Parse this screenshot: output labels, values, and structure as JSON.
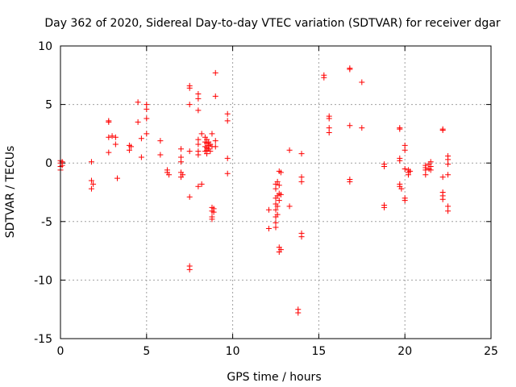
{
  "chart_data": {
    "type": "scatter",
    "title": "Day 362 of 2020, Sidereal Day-to-day VTEC variation (SDTVAR) for receiver dgar",
    "xlabel": "GPS time / hours",
    "ylabel": "SDTVAR / TECUs",
    "xlim": [
      0,
      25
    ],
    "ylim": [
      -15,
      10
    ],
    "xticks": [
      0,
      5,
      10,
      15,
      20,
      25
    ],
    "yticks": [
      -15,
      -10,
      -5,
      0,
      5,
      10
    ],
    "grid": true,
    "marker": "+",
    "color": "#ff0000",
    "series": [
      {
        "name": "SDTVAR",
        "points": [
          [
            0.0,
            0.2
          ],
          [
            0.0,
            0.0
          ],
          [
            0.0,
            -0.3
          ],
          [
            0.0,
            -0.6
          ],
          [
            0.1,
            0.1
          ],
          [
            0.1,
            -0.2
          ],
          [
            1.8,
            0.1
          ],
          [
            1.8,
            -1.5
          ],
          [
            1.8,
            -2.2
          ],
          [
            1.9,
            -1.8
          ],
          [
            2.8,
            3.6
          ],
          [
            2.8,
            3.5
          ],
          [
            2.8,
            2.2
          ],
          [
            2.8,
            0.9
          ],
          [
            3.0,
            2.3
          ],
          [
            3.2,
            2.2
          ],
          [
            3.2,
            1.6
          ],
          [
            3.3,
            -1.3
          ],
          [
            4.0,
            1.5
          ],
          [
            4.0,
            1.1
          ],
          [
            4.1,
            1.4
          ],
          [
            4.5,
            5.2
          ],
          [
            4.5,
            3.5
          ],
          [
            4.7,
            2.1
          ],
          [
            4.7,
            0.5
          ],
          [
            5.0,
            5.0
          ],
          [
            5.0,
            4.6
          ],
          [
            5.0,
            3.8
          ],
          [
            5.0,
            2.5
          ],
          [
            5.8,
            1.9
          ],
          [
            5.8,
            0.7
          ],
          [
            6.2,
            -0.6
          ],
          [
            6.2,
            -0.8
          ],
          [
            6.3,
            -1.0
          ],
          [
            7.0,
            1.2
          ],
          [
            7.0,
            0.5
          ],
          [
            7.0,
            0.1
          ],
          [
            7.0,
            -0.8
          ],
          [
            7.0,
            -1.2
          ],
          [
            7.1,
            -1.0
          ],
          [
            7.5,
            6.6
          ],
          [
            7.5,
            6.4
          ],
          [
            7.5,
            5.0
          ],
          [
            7.5,
            1.0
          ],
          [
            7.5,
            -2.9
          ],
          [
            7.5,
            -8.8
          ],
          [
            7.5,
            -9.1
          ],
          [
            8.0,
            5.9
          ],
          [
            8.0,
            5.5
          ],
          [
            8.0,
            4.5
          ],
          [
            8.0,
            2.0
          ],
          [
            8.0,
            1.6
          ],
          [
            8.0,
            1.0
          ],
          [
            8.0,
            0.7
          ],
          [
            8.0,
            -2.0
          ],
          [
            8.2,
            2.5
          ],
          [
            8.2,
            -1.8
          ],
          [
            8.4,
            2.2
          ],
          [
            8.4,
            1.8
          ],
          [
            8.4,
            1.4
          ],
          [
            8.4,
            1.0
          ],
          [
            8.5,
            2.0
          ],
          [
            8.5,
            1.7
          ],
          [
            8.5,
            1.3
          ],
          [
            8.5,
            1.1
          ],
          [
            8.5,
            0.8
          ],
          [
            8.6,
            1.8
          ],
          [
            8.6,
            1.5
          ],
          [
            8.6,
            1.2
          ],
          [
            8.7,
            1.6
          ],
          [
            8.7,
            1.0
          ],
          [
            8.8,
            2.5
          ],
          [
            8.8,
            1.4
          ],
          [
            8.8,
            -3.8
          ],
          [
            8.8,
            -4.1
          ],
          [
            8.8,
            -4.6
          ],
          [
            8.8,
            -4.8
          ],
          [
            8.9,
            -3.9
          ],
          [
            8.9,
            -4.2
          ],
          [
            9.0,
            7.7
          ],
          [
            9.0,
            5.7
          ],
          [
            9.0,
            1.9
          ],
          [
            9.0,
            1.4
          ],
          [
            9.7,
            4.2
          ],
          [
            9.7,
            3.6
          ],
          [
            9.7,
            0.4
          ],
          [
            9.7,
            -0.9
          ],
          [
            12.1,
            -4.0
          ],
          [
            12.1,
            -5.6
          ],
          [
            12.5,
            -1.8
          ],
          [
            12.5,
            -2.2
          ],
          [
            12.5,
            -3.0
          ],
          [
            12.5,
            -3.5
          ],
          [
            12.5,
            -4.0
          ],
          [
            12.5,
            -4.6
          ],
          [
            12.5,
            -5.1
          ],
          [
            12.5,
            -5.5
          ],
          [
            12.6,
            -1.6
          ],
          [
            12.6,
            -2.8
          ],
          [
            12.6,
            -3.7
          ],
          [
            12.6,
            -4.4
          ],
          [
            12.7,
            -0.7
          ],
          [
            12.7,
            -1.9
          ],
          [
            12.7,
            -2.6
          ],
          [
            12.7,
            -3.2
          ],
          [
            12.7,
            -7.2
          ],
          [
            12.7,
            -7.6
          ],
          [
            12.8,
            -0.8
          ],
          [
            12.8,
            -2.7
          ],
          [
            12.8,
            -7.4
          ],
          [
            13.3,
            1.1
          ],
          [
            13.3,
            -3.7
          ],
          [
            13.8,
            -12.5
          ],
          [
            13.8,
            -12.8
          ],
          [
            14.0,
            0.8
          ],
          [
            14.0,
            -1.2
          ],
          [
            14.0,
            -1.6
          ],
          [
            14.0,
            -6.0
          ],
          [
            14.0,
            -6.3
          ],
          [
            15.3,
            7.5
          ],
          [
            15.3,
            7.3
          ],
          [
            15.6,
            4.0
          ],
          [
            15.6,
            3.8
          ],
          [
            15.6,
            3.0
          ],
          [
            15.6,
            2.6
          ],
          [
            16.8,
            8.1
          ],
          [
            16.8,
            8.0
          ],
          [
            16.8,
            3.2
          ],
          [
            16.8,
            -1.4
          ],
          [
            16.8,
            -1.6
          ],
          [
            17.5,
            6.9
          ],
          [
            17.5,
            3.0
          ],
          [
            18.8,
            -0.1
          ],
          [
            18.8,
            -0.3
          ],
          [
            18.8,
            -3.6
          ],
          [
            18.8,
            -3.8
          ],
          [
            19.7,
            3.0
          ],
          [
            19.7,
            2.9
          ],
          [
            19.7,
            0.4
          ],
          [
            19.7,
            0.2
          ],
          [
            19.7,
            -1.8
          ],
          [
            19.7,
            -2.0
          ],
          [
            19.8,
            -2.2
          ],
          [
            20.0,
            1.5
          ],
          [
            20.0,
            1.1
          ],
          [
            20.0,
            -0.5
          ],
          [
            20.0,
            -3.0
          ],
          [
            20.0,
            -3.2
          ],
          [
            20.2,
            -0.6
          ],
          [
            20.2,
            -0.8
          ],
          [
            20.2,
            -1.0
          ],
          [
            20.3,
            -0.7
          ],
          [
            21.2,
            -0.2
          ],
          [
            21.2,
            -0.4
          ],
          [
            21.2,
            -0.6
          ],
          [
            21.2,
            -1.0
          ],
          [
            21.4,
            -0.1
          ],
          [
            21.4,
            -0.5
          ],
          [
            21.5,
            0.1
          ],
          [
            21.5,
            -0.3
          ],
          [
            21.5,
            -0.6
          ],
          [
            22.2,
            2.9
          ],
          [
            22.2,
            2.8
          ],
          [
            22.2,
            -1.2
          ],
          [
            22.2,
            -2.5
          ],
          [
            22.2,
            -2.8
          ],
          [
            22.2,
            -3.1
          ],
          [
            22.5,
            0.6
          ],
          [
            22.5,
            0.3
          ],
          [
            22.5,
            -0.1
          ],
          [
            22.5,
            -1.0
          ],
          [
            22.5,
            -3.7
          ],
          [
            22.5,
            -4.1
          ]
        ]
      }
    ]
  }
}
